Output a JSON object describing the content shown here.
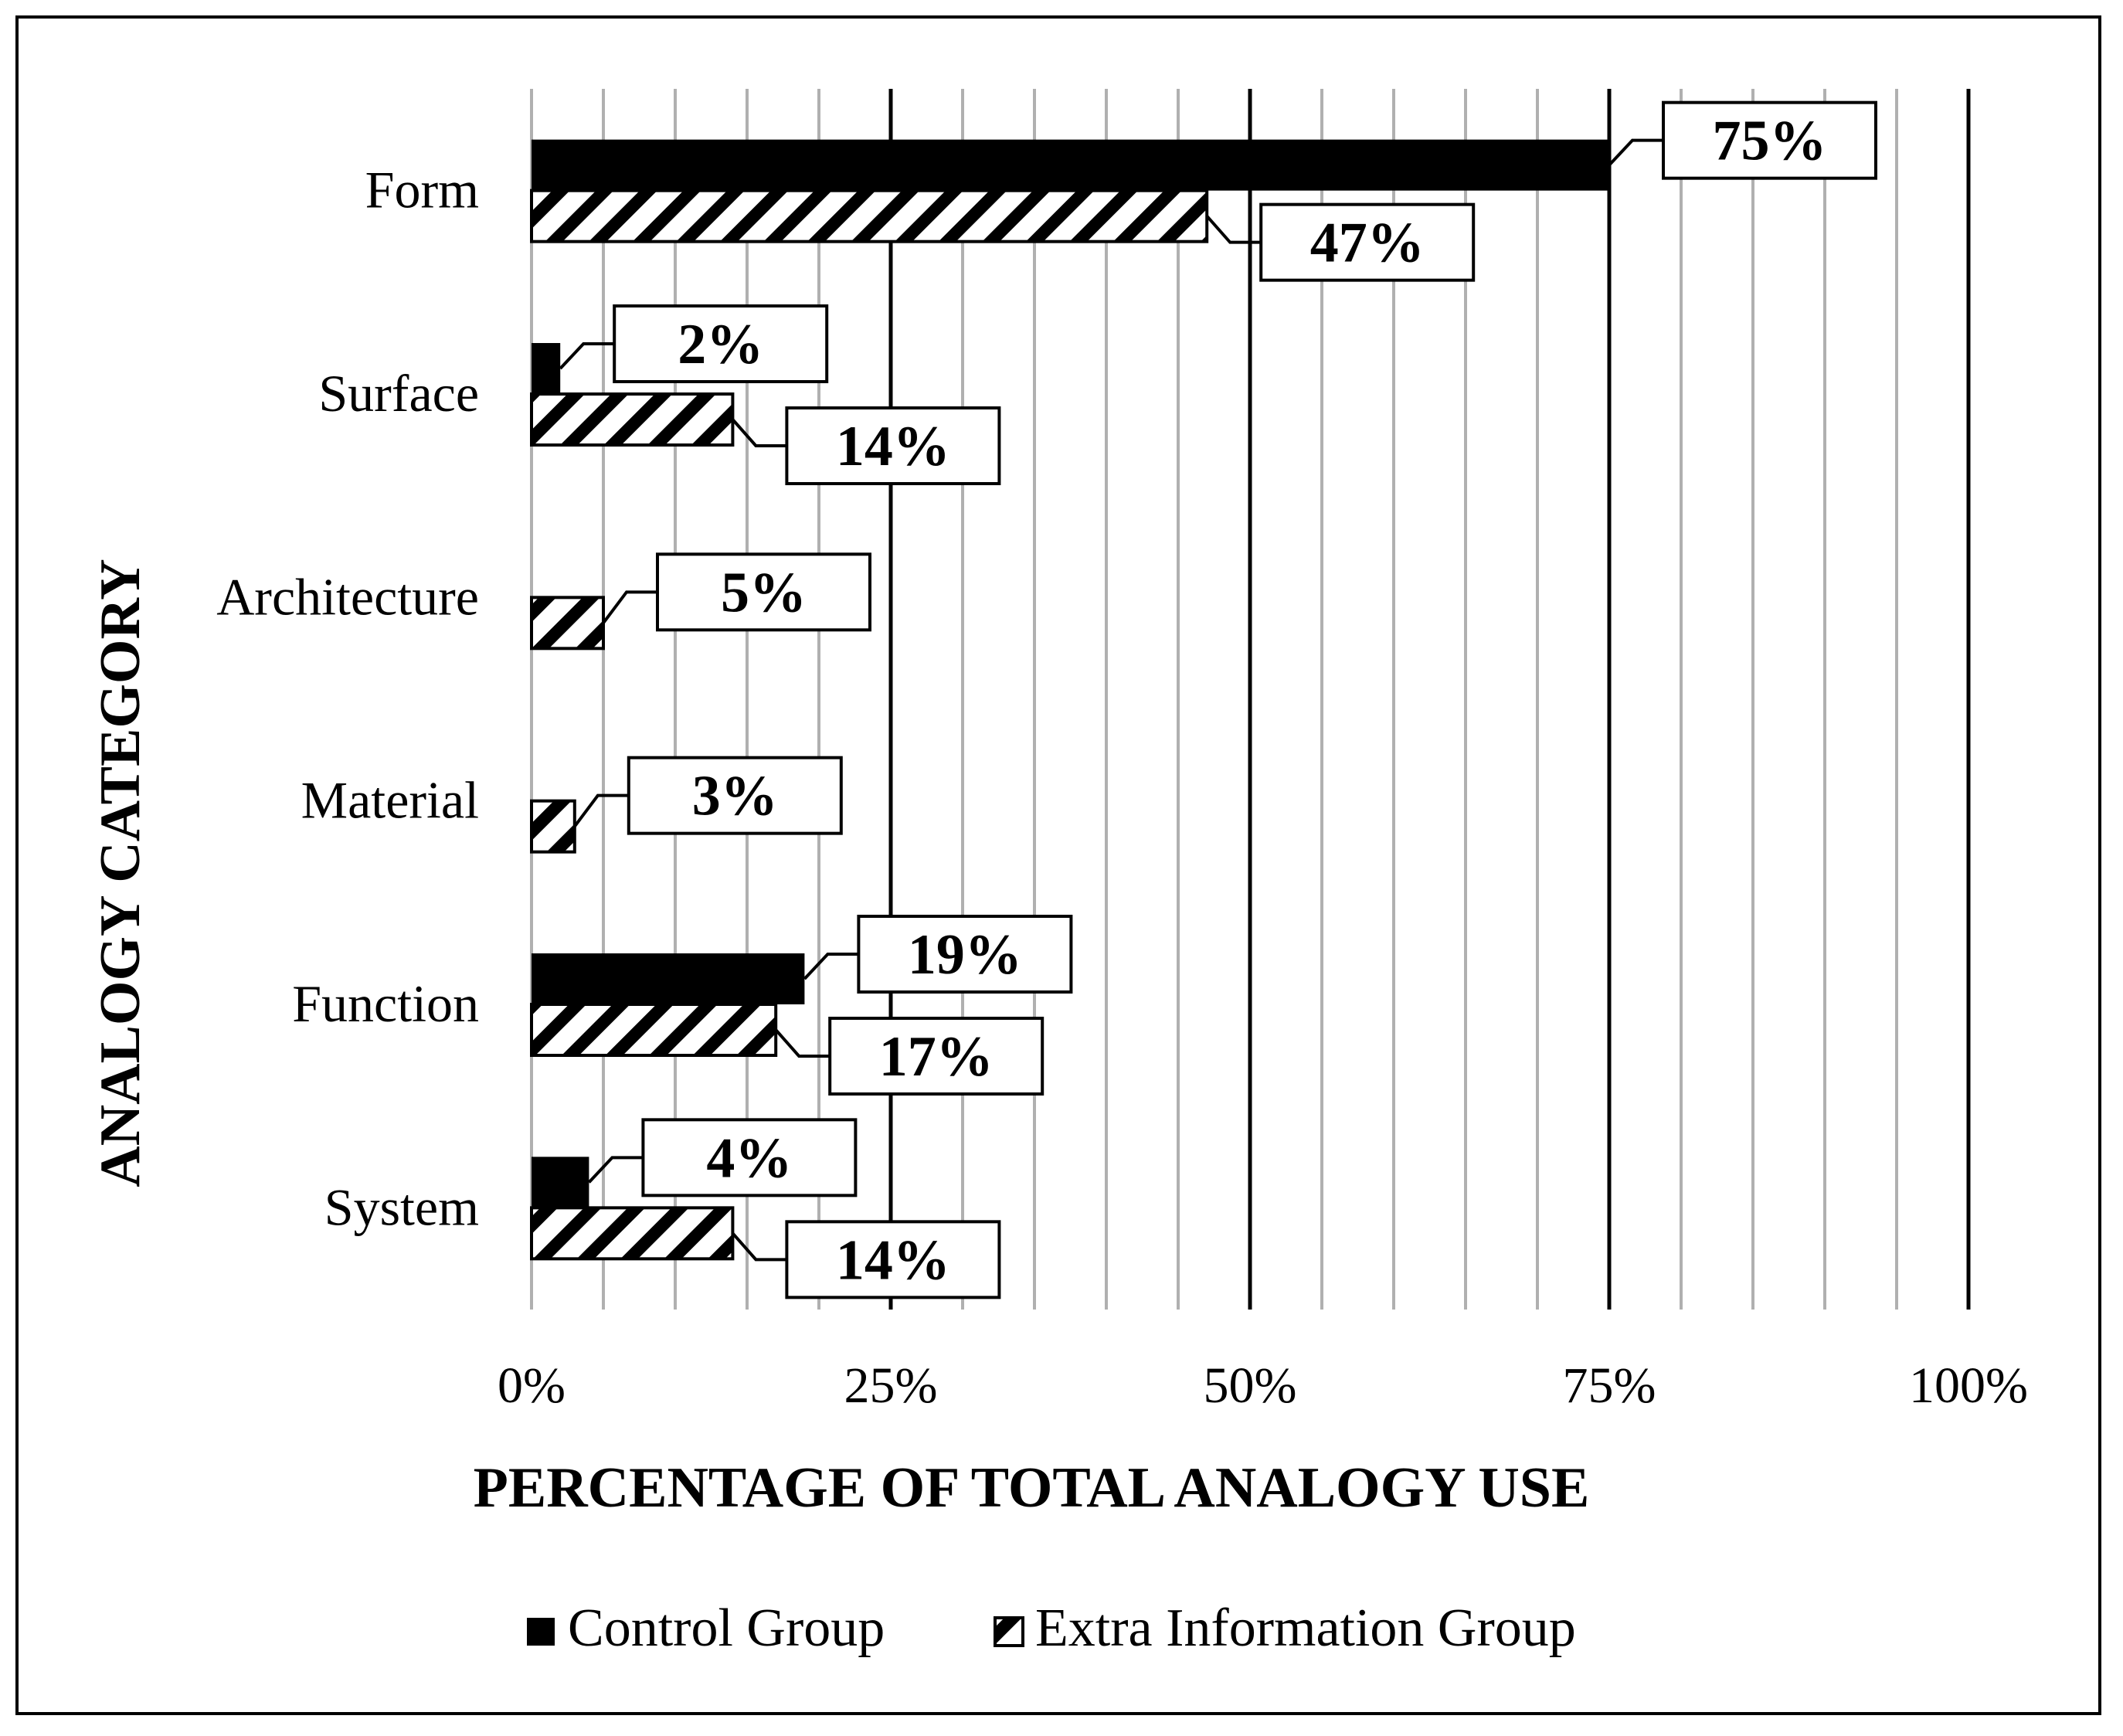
{
  "chart_data": {
    "type": "bar",
    "orientation": "horizontal",
    "title": "",
    "categories": [
      "Form",
      "Surface",
      "Architecture",
      "Material",
      "Function",
      "System"
    ],
    "series": [
      {
        "name": "Control Group",
        "pattern": "solid",
        "values": [
          75,
          2,
          null,
          null,
          19,
          4
        ]
      },
      {
        "name": "Extra Information Group",
        "pattern": "hatched",
        "values": [
          47,
          14,
          5,
          3,
          17,
          14
        ]
      }
    ],
    "data_labels": {
      "control": [
        "75%",
        "2%",
        null,
        null,
        "19%",
        "4%"
      ],
      "extra": [
        "47%",
        "14%",
        "5%",
        "3%",
        "17%",
        "14%"
      ]
    },
    "xlabel": "PERCENTAGE OF TOTAL ANALOGY USE",
    "ylabel": "ANALOGY CATEGORY",
    "xlim": [
      0,
      100
    ],
    "x_ticks": [
      "0%",
      "25%",
      "50%",
      "75%",
      "100%"
    ],
    "major_grid_step": 25,
    "minor_grid_step": 5,
    "legend": {
      "position": "bottom",
      "items": [
        "Control Group",
        "Extra Information Group"
      ]
    },
    "colors": {
      "control": "#000000",
      "extra_fill": "#ffffff",
      "extra_hatch": "#000000",
      "major_grid": "#000000",
      "minor_grid": "#b0b0b0"
    }
  }
}
